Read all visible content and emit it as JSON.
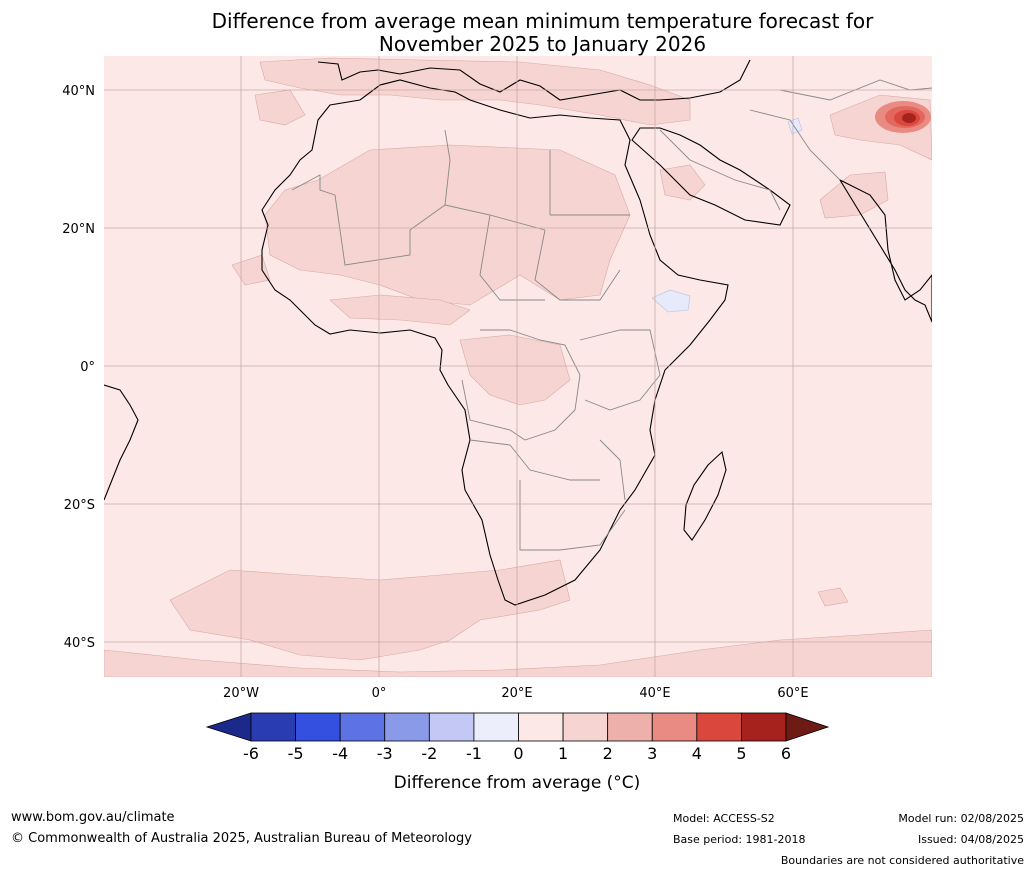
{
  "title": {
    "line1": "Difference from average mean minimum temperature forecast for",
    "line2": "November 2025 to January 2026"
  },
  "map": {
    "lat_labels": [
      "40°N",
      "20°N",
      "0°",
      "20°S",
      "40°S"
    ],
    "lon_labels": [
      "20°W",
      "0°",
      "20°E",
      "40°E",
      "60°E"
    ],
    "colors": {
      "ocean_background": "#fce9e7",
      "anomaly_1_2": "#f6d4d1",
      "anomaly_3_4": "#e98a83",
      "anomaly_4_5": "#d9473d",
      "anomaly_5_6": "#a6231d",
      "anomaly_neg": "#e6eafb",
      "coast": "#000000",
      "borders": "#888888"
    }
  },
  "colorbar": {
    "title": "Difference from average (°C)",
    "tick_labels": [
      "-6",
      "-5",
      "-4",
      "-3",
      "-2",
      "-1",
      "0",
      "1",
      "2",
      "3",
      "4",
      "5",
      "6"
    ],
    "colors": [
      "#1b2a8a",
      "#2a3cb2",
      "#3350e0",
      "#5c72e5",
      "#8a9ae9",
      "#c3c9f4",
      "#eceefb",
      "#fce9e7",
      "#f6d4d1",
      "#eeb0ab",
      "#e98a83",
      "#d9473d",
      "#a6231d",
      "#6e1a15"
    ]
  },
  "footer": {
    "website": "www.bom.gov.au/climate",
    "copyright": "© Commonwealth of Australia 2025, Australian Bureau of Meteorology",
    "model": "Model: ACCESS-S2",
    "base_period": "Base period: 1981-2018",
    "model_run": "Model run: 02/08/2025",
    "issued": "Issued: 04/08/2025",
    "disclaimer": "Boundaries are not considered authoritative"
  }
}
